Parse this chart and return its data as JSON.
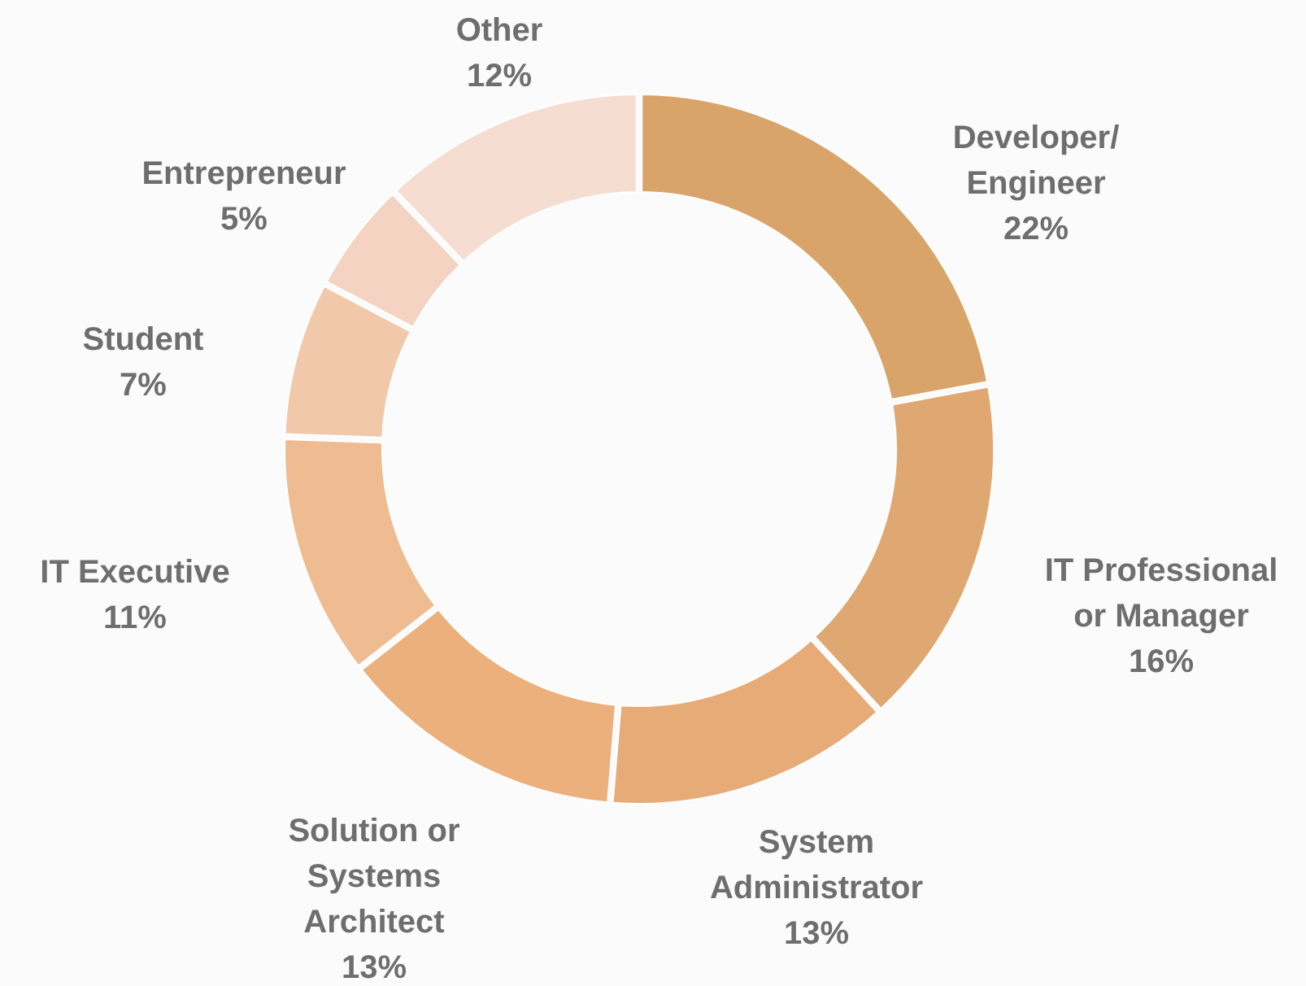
{
  "chart_data": {
    "type": "donut",
    "categories": [
      "Developer/\nEngineer",
      "IT Professional\nor Manager",
      "System\nAdministrator",
      "Solution or\nSystems\nArchitect",
      "IT Executive",
      "Student",
      "Entrepreneur",
      "Other"
    ],
    "values": [
      22,
      16,
      13,
      13,
      11,
      7,
      5,
      12
    ],
    "value_labels": [
      "22%",
      "16%",
      "13%",
      "13%",
      "11%",
      "7%",
      "5%",
      "12%"
    ],
    "colors": [
      "#d9a46a",
      "#dfa872",
      "#e6ab76",
      "#ebb07c",
      "#efbb90",
      "#f2c8aa",
      "#f4d3c2",
      "#f6ddd2"
    ]
  }
}
